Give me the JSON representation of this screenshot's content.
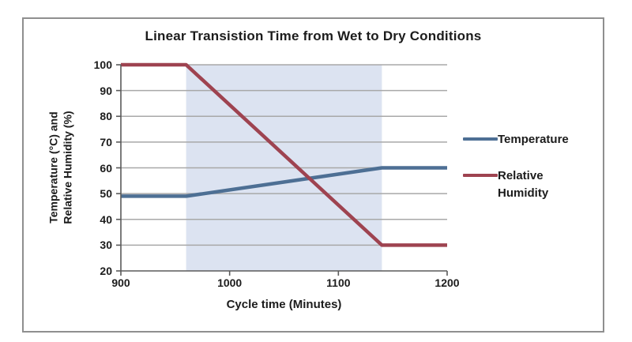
{
  "figure": {
    "frame_border_color": "#8f8f8f",
    "background": "#ffffff",
    "gridline_color": "#a8a8a8",
    "axis_color": "#5a5a5a",
    "text_color": "#1c1c1c"
  },
  "chart_data": {
    "type": "line",
    "title": "Linear Transistion Time from Wet to Dry Conditions",
    "xlabel": "Cycle time (Minutes)",
    "ylabel": "Temperature (°C) and Relative Humidity (%)",
    "ylabel_lines": [
      "Temperature (°C) and",
      "Relative Humidity (%)"
    ],
    "xlim": [
      900,
      1200
    ],
    "ylim": [
      20,
      100
    ],
    "xticks": [
      900,
      1000,
      1100,
      1200
    ],
    "yticks": [
      20,
      30,
      40,
      50,
      60,
      70,
      80,
      90,
      100
    ],
    "grid": "horizontal-only",
    "legend_position": "right-outside",
    "highlight_band": {
      "x0": 960,
      "x1": 1140,
      "color": "#dce3f1"
    },
    "series": [
      {
        "name": "Temperature",
        "color": "#4d6f94",
        "x": [
          900,
          960,
          1140,
          1200
        ],
        "y": [
          49,
          49,
          60,
          60
        ]
      },
      {
        "name": "Relative Humidity",
        "color": "#9e4350",
        "x": [
          900,
          960,
          1140,
          1200
        ],
        "y": [
          100,
          100,
          30,
          30
        ]
      }
    ]
  }
}
